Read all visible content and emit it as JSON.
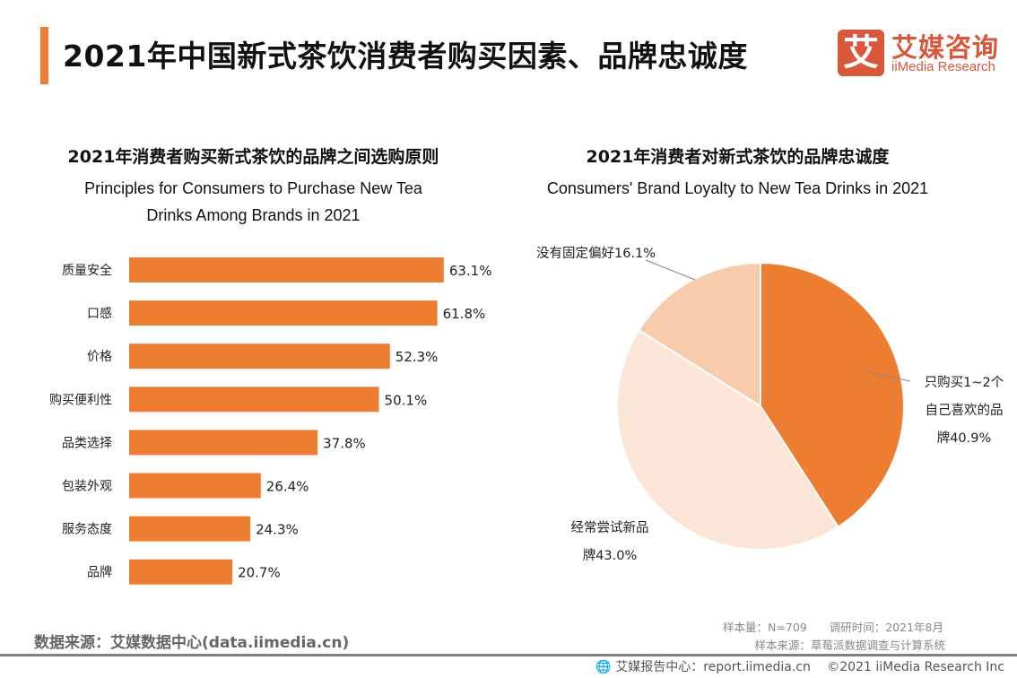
{
  "header": {
    "title": "2021年中国新式茶饮消费者购买因素、品牌忠诚度",
    "logo_icon_text": "艾",
    "logo_cn": "艾媒咨询",
    "logo_en": "iiMedia Research",
    "accent_color": "#ED7D31",
    "brand_color": "#D9573B"
  },
  "chart_data": [
    {
      "type": "bar",
      "orientation": "horizontal",
      "title": "2021年消费者购买新式茶饮的品牌之间选购原则",
      "subtitle": "Principles for Consumers to Purchase New Tea Drinks Among Brands in 2021",
      "categories": [
        "质量安全",
        "口感",
        "价格",
        "购买便利性",
        "品类选择",
        "包装外观",
        "服务态度",
        "品牌"
      ],
      "values": [
        63.1,
        61.8,
        52.3,
        50.1,
        37.8,
        26.4,
        24.3,
        20.7
      ],
      "labels": [
        "63.1%",
        "61.8%",
        "52.3%",
        "50.1%",
        "37.8%",
        "26.4%",
        "24.3%",
        "20.7%"
      ],
      "unit": "%",
      "color": "#ED7D31",
      "grid": false
    },
    {
      "type": "pie",
      "title": "2021年消费者对新式茶饮的品牌忠诚度",
      "subtitle": "Consumers' Brand Loyalty to New Tea Drinks in 2021",
      "slices": [
        {
          "label": "只购买1~2个自己喜欢的品牌",
          "value": 40.9,
          "label_lines": [
            "只购买1~2个",
            "自己喜欢的品",
            "牌40.9%"
          ],
          "color": "#ED7D31"
        },
        {
          "label": "经常尝试新品牌",
          "value": 43.0,
          "label_lines": [
            "经常尝试新品",
            "牌43.0%"
          ],
          "color": "#FBE5D6"
        },
        {
          "label": "没有固定偏好",
          "value": 16.1,
          "label_lines": [
            "没有固定偏好16.1%"
          ],
          "color": "#F8CBAD"
        }
      ]
    }
  ],
  "footer": {
    "source": "数据来源：艾媒数据中心(data.iimedia.cn)",
    "sample": "样本量：N=709　　调研时间：2021年8月",
    "sample_source": "样本来源：草莓派数据调查与计算系统",
    "report": "艾媒报告中心：report.iimedia.cn　 ©2021  iiMedia Research  Inc"
  }
}
